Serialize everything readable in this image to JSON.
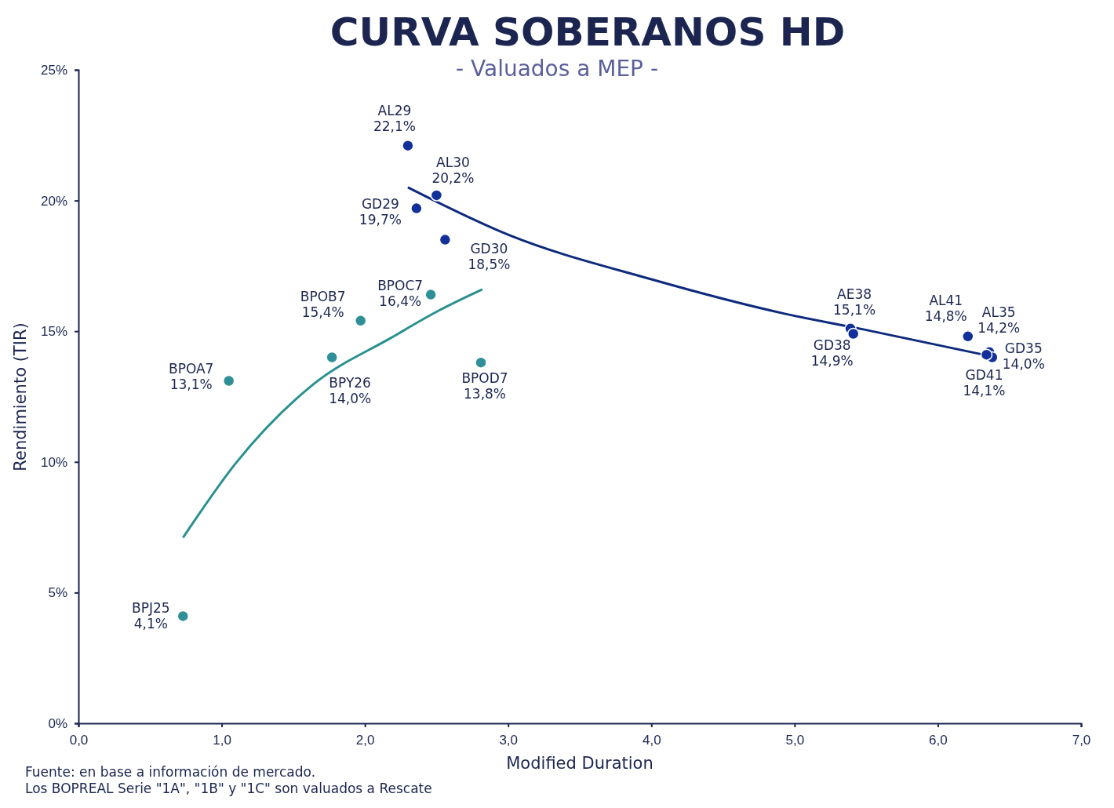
{
  "chart_data": {
    "type": "scatter",
    "title": "CURVA SOBERANOS HD",
    "subtitle": "- Valuados a MEP -",
    "xlabel": "Modified Duration",
    "ylabel": "Rendimiento (TIR)",
    "xlim": [
      0,
      7
    ],
    "xticks": [
      {
        "value": 0,
        "label": "0,0"
      },
      {
        "value": 1,
        "label": "1,0"
      },
      {
        "value": 2,
        "label": "2,0"
      },
      {
        "value": 3,
        "label": "3,0"
      },
      {
        "value": 4,
        "label": "4,0"
      },
      {
        "value": 5,
        "label": "5,0"
      },
      {
        "value": 6,
        "label": "6,0"
      },
      {
        "value": 7,
        "label": "7,0"
      }
    ],
    "ylim": [
      0,
      25
    ],
    "yticks": [
      {
        "value": 0,
        "label": "0%"
      },
      {
        "value": 5,
        "label": "5%"
      },
      {
        "value": 10,
        "label": "10%"
      },
      {
        "value": 15,
        "label": "15%"
      },
      {
        "value": 20,
        "label": "20%"
      },
      {
        "value": 25,
        "label": "25%"
      }
    ],
    "grid": false,
    "marker": "circle",
    "series": [
      {
        "color": "#12309a",
        "x": [
          2.3,
          2.5,
          2.36,
          2.56,
          5.39,
          5.41,
          6.21,
          6.36,
          6.38,
          6.34
        ],
        "values": [
          22.1,
          20.2,
          19.7,
          18.5,
          15.1,
          14.9,
          14.8,
          14.2,
          14.0,
          14.1
        ],
        "value_labels": [
          "22,1%",
          "20,2%",
          "19,7%",
          "18,5%",
          "15,1%",
          "14,9%",
          "14,8%",
          "14,2%",
          "14,0%",
          "14,1%"
        ]
      },
      {
        "color": "#2e8f96",
        "x": [
          0.73,
          1.05,
          1.77,
          1.97,
          2.46,
          2.81
        ],
        "values": [
          4.1,
          13.1,
          14.0,
          15.4,
          16.4,
          13.8
        ],
        "value_labels": [
          "4,1%",
          "13,1%",
          "14,0%",
          "15,4%",
          "16,4%",
          "13,8%"
        ]
      },
      {
        "type": "line",
        "marker": "none",
        "color": "#0d2a7d",
        "x": [
          2.3,
          3.01,
          3.99,
          4.93,
          5.48,
          6.32
        ],
        "values": [
          20.5,
          18.67,
          17.0,
          15.67,
          15.07,
          14.1
        ]
      },
      {
        "type": "line",
        "marker": "none",
        "color": "#2a9090",
        "x": [
          0.73,
          1.1,
          1.64,
          2.19,
          2.52,
          2.82
        ],
        "values": [
          7.1,
          9.96,
          12.97,
          14.77,
          15.8,
          16.6
        ]
      }
    ],
    "annotations": [
      "Fuente: en base a información de mercado.",
      "Los BOPREAL Serie \"1A\", \"1B\" y \"1C\" son valuados a Rescate",
      {
        "text": "AL29",
        "x": 2.3,
        "y": 22.1
      },
      {
        "text": "AL30",
        "x": 2.5,
        "y": 20.2
      },
      {
        "text": "GD29",
        "x": 2.36,
        "y": 19.7
      },
      {
        "text": "GD30",
        "x": 2.56,
        "y": 18.5
      },
      {
        "text": "AE38",
        "x": 5.39,
        "y": 15.1
      },
      {
        "text": "GD38",
        "x": 5.41,
        "y": 14.9
      },
      {
        "text": "AL41",
        "x": 6.21,
        "y": 14.8
      },
      {
        "text": "AL35",
        "x": 6.36,
        "y": 14.2
      },
      {
        "text": "GD35",
        "x": 6.38,
        "y": 14.0
      },
      {
        "text": "GD41",
        "x": 6.34,
        "y": 14.1
      },
      {
        "text": "BPJ25",
        "x": 0.73,
        "y": 4.1
      },
      {
        "text": "BPOA7",
        "x": 1.05,
        "y": 13.1
      },
      {
        "text": "BPY26",
        "x": 1.77,
        "y": 14.0
      },
      {
        "text": "BPOB7",
        "x": 1.97,
        "y": 15.4
      },
      {
        "text": "BPOC7",
        "x": 2.46,
        "y": 16.4
      },
      {
        "text": "BPOD7",
        "x": 2.81,
        "y": 13.8
      }
    ]
  }
}
